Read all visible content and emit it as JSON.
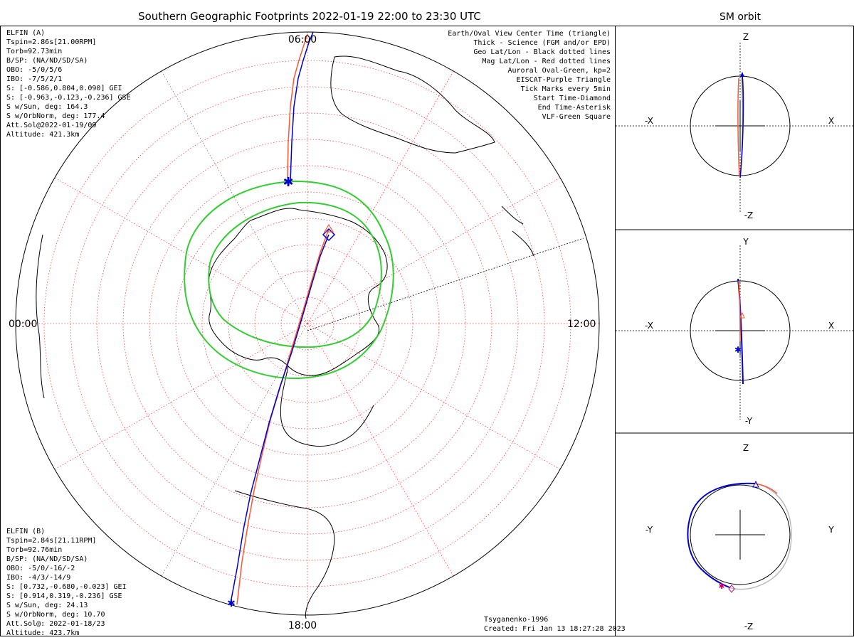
{
  "title": "Southern Geographic Footprints 2022-01-19 22:00 to 23:30 UTC",
  "orbit_title": "SM orbit",
  "mlt_labels": {
    "top": "06:00",
    "left": "00:00",
    "right": "12:00",
    "bottom": "18:00"
  },
  "elfin_a": {
    "name": "ELFIN (A)",
    "color": "#0000cc",
    "lines": [
      "Tspin=2.86s[21.00RPM]",
      "Torb=92.73min",
      "B/SP: (NA/ND/SD/SA)",
      "OBO: -5/0/5/6",
      "IBO: -7/5/2/1",
      "S: [-0.586,0.804,0.090] GEI",
      "S: [-0.963,-0.123,-0.236] GSE",
      "S w/Sun, deg: 164.3",
      "S w/OrbNorm, deg: 177.4",
      "Att.Sol@2022-01-19/09",
      "Altitude: 421.3km"
    ]
  },
  "elfin_b": {
    "name": "ELFIN (B)",
    "color": "#ff5533",
    "lines": [
      "Tspin=2.84s[21.11RPM]",
      "Torb=92.76min",
      "B/SP: (NA/ND/SD/SA)",
      "OBO: -5/0/-16/-2",
      "IBO: -4/3/-14/9",
      "S: [0.732,-0.680,-0.023] GEI",
      "S: [0.914,0.319,-0.236] GSE",
      "S w/Sun, deg: 24.13",
      "S w/OrbNorm, deg: 10.70",
      "Att.Sol@: 2022-01-18/23",
      "Altitude: 423.7km"
    ]
  },
  "legend": [
    {
      "text": "Earth/Oval View Center Time (triangle)",
      "color": "#000000"
    },
    {
      "text": "Thick - Science (FGM and/or EPD)",
      "color": "#000000"
    },
    {
      "text": "Geo Lat/Lon - Black dotted lines",
      "color": "#000000"
    },
    {
      "text": "Mag Lat/Lon - Red dotted lines",
      "color": "#ff0000"
    },
    {
      "text": "Auroral Oval-Green, kp=2",
      "color": "#33cc33"
    },
    {
      "text": "EISCAT-Purple Triangle",
      "color": "#dd77dd"
    },
    {
      "text": "Tick Marks every 5min",
      "color": "#000000"
    },
    {
      "text": "Start Time-Diamond",
      "color": "#000000"
    },
    {
      "text": "End Time-Asterisk",
      "color": "#000000"
    },
    {
      "text": "VLF-Green Square",
      "color": "#33cc33"
    }
  ],
  "footer": {
    "model": "Tsyganenko-1996",
    "created": "Created: Fri Jan 13 18:27:28 2023"
  },
  "panels": [
    {
      "top": "Z",
      "bottom": "-Z",
      "left": "-X",
      "right": "X"
    },
    {
      "top": "Y",
      "bottom": "-Y",
      "left": "-X",
      "right": "X"
    },
    {
      "top": "Z",
      "bottom": "-Z",
      "left": "-Y",
      "right": "Y"
    }
  ]
}
